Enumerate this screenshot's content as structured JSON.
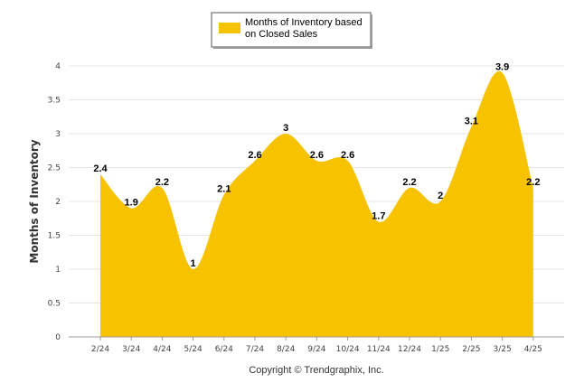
{
  "chart_data": {
    "type": "area",
    "categories": [
      "2/24",
      "3/24",
      "4/24",
      "5/24",
      "6/24",
      "7/24",
      "8/24",
      "9/24",
      "10/24",
      "11/24",
      "12/24",
      "1/25",
      "2/25",
      "3/25",
      "4/25"
    ],
    "series": [
      {
        "name": "Months of Inventory based on Closed Sales",
        "values": [
          2.4,
          1.9,
          2.2,
          1,
          2.1,
          2.6,
          3,
          2.6,
          2.6,
          1.7,
          2.2,
          2,
          3.1,
          3.9,
          2.2
        ]
      }
    ],
    "data_labels": [
      "2.4",
      "1.9",
      "2.2",
      "1",
      "2.1",
      "2.6",
      "3",
      "2.6",
      "2.6",
      "1.7",
      "2.2",
      "2",
      "3.1",
      "3.9",
      "2.2"
    ],
    "y_ticks": [
      "0",
      "0.5",
      "1",
      "1.5",
      "2",
      "2.5",
      "3",
      "3.5",
      "4"
    ],
    "ylim": [
      0,
      4
    ],
    "ylabel": "Months of Inventory",
    "xlabel": "",
    "title": "",
    "legend": {
      "lines": [
        "Months of Inventory based",
        "on Closed Sales"
      ],
      "position": "top-center"
    },
    "grid": true,
    "color": "#F7C200"
  },
  "footer": "Copyright © Trendgraphix, Inc."
}
